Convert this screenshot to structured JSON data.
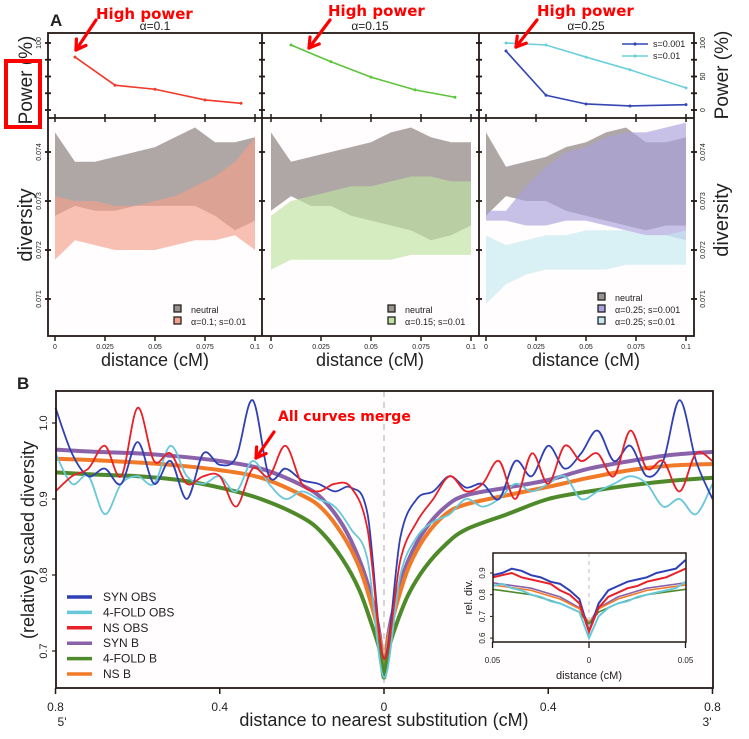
{
  "panel_labels": {
    "a": "A",
    "b": "B"
  },
  "annotations": {
    "high_power": "High power",
    "all_curves_merge": "All curves merge",
    "color": "#ff0000"
  },
  "chart_data": [
    {
      "type": "line",
      "title": "α=0.1",
      "ylabel": "Power (%)",
      "ylim": [
        0,
        100
      ],
      "yticks": [
        0,
        25,
        50,
        75,
        100
      ],
      "ytick_labels": [
        "0",
        "50",
        "100"
      ],
      "xlim": [
        0,
        0.1
      ],
      "xticks": [
        0,
        0.025,
        0.05,
        0.075,
        0.1
      ],
      "x": [
        0.01,
        0.03,
        0.05,
        0.075,
        0.093
      ],
      "series": [
        {
          "color": "#f03a2a",
          "values": [
            79,
            37,
            31,
            15,
            10
          ]
        }
      ]
    },
    {
      "type": "line",
      "title": "α=0.15",
      "ylim": [
        0,
        100
      ],
      "yticks": [
        0,
        25,
        50,
        75,
        100
      ],
      "xlim": [
        0,
        0.1
      ],
      "xticks": [
        0,
        0.025,
        0.05,
        0.075,
        0.1
      ],
      "x": [
        0.01,
        0.03,
        0.05,
        0.072,
        0.092
      ],
      "series": [
        {
          "color": "#5cc43a",
          "values": [
            97,
            72,
            49,
            30,
            19
          ]
        }
      ]
    },
    {
      "type": "line",
      "title": "α=0.25",
      "ylabel": "Power (%)",
      "ylim": [
        0,
        100
      ],
      "yticks": [
        0,
        25,
        50,
        75,
        100
      ],
      "ytick_labels": [
        "0",
        "50",
        "100"
      ],
      "xlim": [
        0,
        0.1
      ],
      "xticks": [
        0,
        0.025,
        0.05,
        0.075,
        0.1
      ],
      "x": [
        0.01,
        0.03,
        0.05,
        0.072,
        0.1
      ],
      "legend": "top-right",
      "series": [
        {
          "name": "s=0.001",
          "color": "#3446b4",
          "values": [
            88,
            22,
            9,
            6,
            8
          ]
        },
        {
          "name": "s=0.01",
          "color": "#6cd0dc",
          "values": [
            100,
            97,
            79,
            60,
            33
          ]
        }
      ]
    },
    {
      "type": "area",
      "xlabel": "distance (cM)",
      "ylabel": "diversity",
      "ylim": [
        0.0703,
        0.0747
      ],
      "yticks": [
        0.071,
        0.072,
        0.073,
        0.074
      ],
      "ytick_labels": [
        "0.071",
        "0.072",
        "0.073",
        "0.074"
      ],
      "xticks": [
        0,
        0.025,
        0.05,
        0.075,
        0.1
      ],
      "xtick_labels": [
        "0",
        "0.025",
        "0.05",
        "0.075",
        "0.1"
      ],
      "x": [
        0,
        0.01,
        0.02,
        0.03,
        0.04,
        0.05,
        0.06,
        0.07,
        0.08,
        0.09,
        0.1
      ],
      "legend": "bottom-right",
      "series": [
        {
          "name": "neutral",
          "color": "#9b918e",
          "upper": [
            0.0744,
            0.0738,
            0.0738,
            0.0739,
            0.074,
            0.0741,
            0.0743,
            0.0745,
            0.0742,
            0.0742,
            0.0743
          ],
          "lower": [
            0.0727,
            0.0729,
            0.0728,
            0.0728,
            0.0729,
            0.0729,
            0.0729,
            0.0729,
            0.0727,
            0.0724,
            0.0726
          ]
        },
        {
          "name": "α=0.1; s=0.01",
          "color": "#f4a08a",
          "upper": [
            0.0731,
            0.073,
            0.073,
            0.0729,
            0.0729,
            0.073,
            0.0731,
            0.0733,
            0.0735,
            0.0738,
            0.0743
          ],
          "lower": [
            0.0718,
            0.0722,
            0.0721,
            0.072,
            0.072,
            0.072,
            0.0721,
            0.0722,
            0.0722,
            0.0723,
            0.072
          ]
        }
      ]
    },
    {
      "type": "area",
      "xlabel": "distance (cM)",
      "ylim": [
        0.0703,
        0.0747
      ],
      "yticks": [
        0.071,
        0.072,
        0.073,
        0.074
      ],
      "xticks": [
        0,
        0.025,
        0.05,
        0.075,
        0.1
      ],
      "xtick_labels": [
        "0",
        "0.025",
        "0.05",
        "0.075",
        "0.1"
      ],
      "x": [
        0,
        0.01,
        0.02,
        0.03,
        0.04,
        0.05,
        0.06,
        0.07,
        0.08,
        0.09,
        0.1
      ],
      "legend": "bottom-right",
      "series": [
        {
          "name": "neutral",
          "color": "#9b918e",
          "upper": [
            0.0744,
            0.0738,
            0.0739,
            0.074,
            0.0741,
            0.0742,
            0.0744,
            0.0745,
            0.0743,
            0.0742,
            0.0742
          ],
          "lower": [
            0.0728,
            0.0731,
            0.0729,
            0.0729,
            0.0727,
            0.0726,
            0.0725,
            0.0724,
            0.0722,
            0.0723,
            0.0725
          ]
        },
        {
          "name": "α=0.15; s=0.01",
          "color": "#bfe3a0",
          "upper": [
            0.0727,
            0.073,
            0.0731,
            0.0732,
            0.0733,
            0.0733,
            0.0734,
            0.0735,
            0.0735,
            0.0734,
            0.0734
          ],
          "lower": [
            0.0716,
            0.0718,
            0.0718,
            0.0718,
            0.0718,
            0.0718,
            0.0718,
            0.0719,
            0.0719,
            0.0719,
            0.0719
          ]
        }
      ]
    },
    {
      "type": "area",
      "xlabel": "distance (cM)",
      "ylabel": "diversity",
      "ylim": [
        0.0703,
        0.0747
      ],
      "yticks": [
        0.071,
        0.072,
        0.073,
        0.074
      ],
      "ytick_labels": [
        "0.071",
        "0.072",
        "0.073",
        "0.074"
      ],
      "xticks": [
        0,
        0.025,
        0.05,
        0.075,
        0.1
      ],
      "xtick_labels": [
        "0",
        "0.025",
        "0.05",
        "0.075",
        "0.1"
      ],
      "x": [
        0,
        0.01,
        0.02,
        0.03,
        0.04,
        0.05,
        0.06,
        0.07,
        0.08,
        0.09,
        0.1
      ],
      "legend": "bottom-right",
      "series": [
        {
          "name": "neutral",
          "color": "#9b918e",
          "upper": [
            0.0744,
            0.0737,
            0.0738,
            0.0739,
            0.0741,
            0.0742,
            0.0744,
            0.0745,
            0.0742,
            0.0742,
            0.0743
          ],
          "lower": [
            0.0727,
            0.0731,
            0.073,
            0.073,
            0.0728,
            0.0727,
            0.0726,
            0.0725,
            0.0724,
            0.0725,
            0.0725
          ]
        },
        {
          "name": "α=0.25; s=0.001",
          "color": "#a9a2dc",
          "upper": [
            0.0728,
            0.0728,
            0.0733,
            0.0737,
            0.074,
            0.0741,
            0.0743,
            0.0744,
            0.0744,
            0.0745,
            0.0746
          ],
          "lower": [
            0.0726,
            0.0726,
            0.0725,
            0.0725,
            0.0726,
            0.0726,
            0.0725,
            0.0724,
            0.0723,
            0.0723,
            0.0722
          ]
        },
        {
          "name": "α=0.25; s=0.01",
          "color": "#c4e9f0",
          "upper": [
            0.0723,
            0.0721,
            0.0722,
            0.0723,
            0.0723,
            0.0724,
            0.0724,
            0.0724,
            0.0723,
            0.0723,
            0.0724
          ],
          "lower": [
            0.0709,
            0.0713,
            0.0715,
            0.0716,
            0.0716,
            0.0716,
            0.0716,
            0.0717,
            0.0717,
            0.0717,
            0.0717
          ]
        }
      ]
    },
    {
      "type": "line",
      "xlabel": "distance to nearest substitution (cM)",
      "ylabel": "(relative) scaled diversity",
      "xlim": [
        -0.8,
        0.8
      ],
      "ylim": [
        0.645,
        1.045
      ],
      "xticks": [
        -0.8,
        -0.4,
        0,
        0.4,
        0.8
      ],
      "xtick_labels": [
        "0.8",
        "0.4",
        "0",
        "0.4",
        "0.8"
      ],
      "end_labels": {
        "left": "5'",
        "right": "3'"
      },
      "yticks": [
        0.7,
        0.8,
        0.9,
        1.0
      ],
      "ytick_labels": [
        "0.7",
        "0.8",
        "0.9",
        "1.0"
      ],
      "legend": "bottom-left",
      "x_obs": [
        -0.8,
        -0.76,
        -0.72,
        -0.68,
        -0.64,
        -0.6,
        -0.56,
        -0.52,
        -0.48,
        -0.44,
        -0.4,
        -0.36,
        -0.32,
        -0.28,
        -0.24,
        -0.2,
        -0.16,
        -0.12,
        -0.08,
        -0.04,
        0,
        0.04,
        0.08,
        0.12,
        0.16,
        0.2,
        0.24,
        0.28,
        0.32,
        0.36,
        0.4,
        0.44,
        0.48,
        0.52,
        0.56,
        0.6,
        0.64,
        0.68,
        0.72,
        0.76,
        0.8
      ],
      "x_b": [
        -0.8,
        -0.7,
        -0.6,
        -0.5,
        -0.4,
        -0.3,
        -0.2,
        -0.15,
        -0.1,
        -0.06,
        -0.03,
        -0.01,
        0,
        0.01,
        0.03,
        0.06,
        0.1,
        0.15,
        0.2,
        0.3,
        0.4,
        0.5,
        0.6,
        0.7,
        0.8
      ],
      "series": [
        {
          "name": "SYN OBS",
          "color": "#2f40b4",
          "kind": "obs",
          "values": [
            1.02,
            0.96,
            0.93,
            0.94,
            0.92,
            0.975,
            0.92,
            0.95,
            0.9,
            0.96,
            0.945,
            0.955,
            1.03,
            0.93,
            0.94,
            0.925,
            0.92,
            0.91,
            0.915,
            0.88,
            0.69,
            0.85,
            0.9,
            0.91,
            0.93,
            0.915,
            0.92,
            0.9,
            0.95,
            0.93,
            0.97,
            0.94,
            0.96,
            0.99,
            0.95,
            0.97,
            0.93,
            0.95,
            1.03,
            0.95,
            0.9
          ]
        },
        {
          "name": "4-FOLD OBS",
          "color": "#68c8da",
          "kind": "obs",
          "values": [
            0.96,
            0.92,
            0.93,
            0.88,
            0.92,
            0.93,
            0.92,
            0.97,
            0.93,
            0.92,
            0.93,
            0.91,
            0.95,
            0.92,
            0.9,
            0.91,
            0.9,
            0.89,
            0.86,
            0.82,
            0.665,
            0.8,
            0.85,
            0.87,
            0.88,
            0.9,
            0.89,
            0.9,
            0.92,
            0.91,
            0.92,
            0.93,
            0.9,
            0.91,
            0.92,
            0.93,
            0.92,
            0.89,
            0.9,
            0.88,
            0.92
          ]
        },
        {
          "name": "NS OBS",
          "color": "#e82028",
          "kind": "obs",
          "values": [
            0.91,
            0.93,
            0.94,
            0.97,
            0.93,
            1.02,
            0.95,
            0.96,
            0.92,
            0.93,
            0.93,
            0.89,
            0.94,
            0.93,
            0.97,
            0.92,
            0.91,
            0.92,
            0.915,
            0.86,
            0.69,
            0.82,
            0.87,
            0.9,
            0.93,
            0.91,
            0.92,
            0.95,
            0.9,
            0.96,
            0.92,
            0.97,
            0.95,
            0.96,
            0.93,
            0.99,
            0.94,
            0.95,
            0.91,
            0.96,
            0.95
          ]
        },
        {
          "name": "SYN B",
          "color": "#8a62aa",
          "kind": "b",
          "values": [
            0.965,
            0.962,
            0.96,
            0.956,
            0.95,
            0.94,
            0.918,
            0.9,
            0.865,
            0.82,
            0.77,
            0.72,
            0.67,
            0.72,
            0.77,
            0.82,
            0.86,
            0.89,
            0.905,
            0.915,
            0.925,
            0.94,
            0.95,
            0.958,
            0.962
          ]
        },
        {
          "name": "4-FOLD B",
          "color": "#4e8a2a",
          "kind": "b",
          "values": [
            0.935,
            0.932,
            0.93,
            0.925,
            0.915,
            0.9,
            0.876,
            0.855,
            0.82,
            0.78,
            0.735,
            0.7,
            0.665,
            0.7,
            0.735,
            0.775,
            0.81,
            0.84,
            0.86,
            0.88,
            0.9,
            0.91,
            0.918,
            0.924,
            0.928
          ]
        },
        {
          "name": "NS B",
          "color": "#f07a28",
          "kind": "b",
          "values": [
            0.953,
            0.951,
            0.948,
            0.944,
            0.938,
            0.928,
            0.905,
            0.887,
            0.852,
            0.81,
            0.76,
            0.715,
            0.67,
            0.715,
            0.76,
            0.81,
            0.85,
            0.88,
            0.893,
            0.905,
            0.916,
            0.928,
            0.938,
            0.944,
            0.946
          ]
        }
      ]
    },
    {
      "type": "line",
      "inset": true,
      "xlabel": "distance (cM)",
      "ylabel": "rel. div.",
      "xlim": [
        -0.05,
        0.05
      ],
      "ylim": [
        0.585,
        0.995
      ],
      "xticks": [
        -0.05,
        0,
        0.05
      ],
      "xtick_labels": [
        "0.05",
        "0",
        "0.05"
      ],
      "yticks": [
        0.6,
        0.7,
        0.8,
        0.9
      ],
      "ytick_labels": [
        "0.6",
        "0.7",
        "0.8",
        "0.9"
      ],
      "x_obs": [
        -0.05,
        -0.045,
        -0.04,
        -0.035,
        -0.03,
        -0.025,
        -0.02,
        -0.015,
        -0.01,
        -0.005,
        0,
        0.005,
        0.01,
        0.015,
        0.02,
        0.025,
        0.03,
        0.035,
        0.04,
        0.045,
        0.05
      ],
      "x_b": [
        -0.05,
        -0.03,
        -0.015,
        -0.005,
        0,
        0.005,
        0.015,
        0.03,
        0.05
      ],
      "series": [
        {
          "name": "SYN B",
          "color": "#8a62aa",
          "kind": "b",
          "values": [
            0.855,
            0.83,
            0.79,
            0.74,
            0.67,
            0.74,
            0.79,
            0.83,
            0.855
          ]
        },
        {
          "name": "NS B",
          "color": "#f07a28",
          "kind": "b",
          "values": [
            0.845,
            0.82,
            0.78,
            0.735,
            0.67,
            0.735,
            0.78,
            0.82,
            0.845
          ]
        },
        {
          "name": "4-FOLD B",
          "color": "#4e8a2a",
          "kind": "b",
          "values": [
            0.825,
            0.8,
            0.76,
            0.72,
            0.665,
            0.72,
            0.76,
            0.8,
            0.825
          ]
        },
        {
          "name": "4-FOLD OBS",
          "color": "#68c8da",
          "kind": "obs",
          "values": [
            0.84,
            0.85,
            0.83,
            0.82,
            0.8,
            0.79,
            0.77,
            0.76,
            0.74,
            0.72,
            0.6,
            0.7,
            0.74,
            0.76,
            0.77,
            0.79,
            0.8,
            0.81,
            0.82,
            0.83,
            0.86
          ]
        },
        {
          "name": "SYN OBS",
          "color": "#2f40b4",
          "kind": "obs",
          "values": [
            0.89,
            0.9,
            0.92,
            0.91,
            0.89,
            0.88,
            0.86,
            0.85,
            0.82,
            0.78,
            0.63,
            0.76,
            0.82,
            0.84,
            0.86,
            0.87,
            0.88,
            0.9,
            0.91,
            0.92,
            0.96
          ]
        },
        {
          "name": "NS OBS",
          "color": "#e82028",
          "kind": "obs",
          "values": [
            0.88,
            0.89,
            0.9,
            0.88,
            0.87,
            0.86,
            0.85,
            0.82,
            0.8,
            0.76,
            0.63,
            0.74,
            0.79,
            0.81,
            0.83,
            0.84,
            0.86,
            0.87,
            0.88,
            0.9,
            0.92
          ]
        }
      ]
    }
  ]
}
